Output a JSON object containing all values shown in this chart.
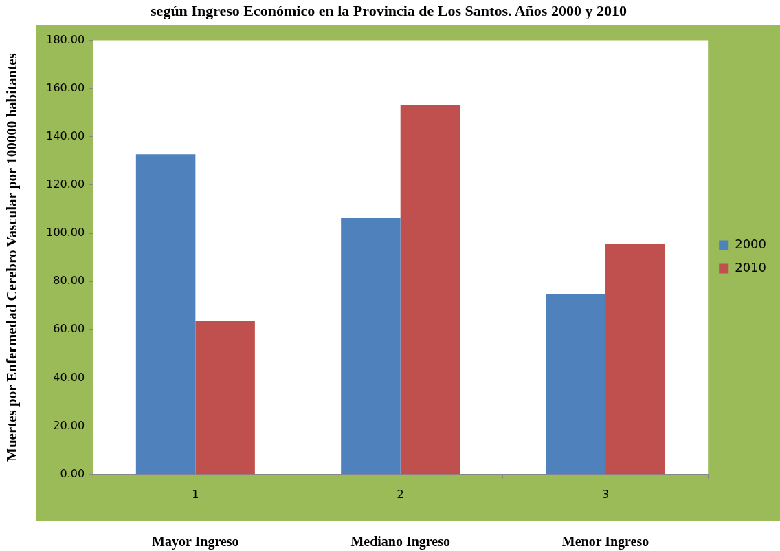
{
  "chart_data": {
    "type": "bar",
    "title": "según Ingreso Económico en la Provincia de Los Santos. Años 2000 y 2010",
    "ylabel": "Muertes por Enfermedad Cerebro Vascular por 100000 habitantes",
    "categories": [
      "1",
      "2",
      "3"
    ],
    "series": [
      {
        "name": "2000",
        "color": "#4f81bd",
        "values": [
          132.7,
          106.3,
          74.8
        ]
      },
      {
        "name": "2010",
        "color": "#c0504d",
        "values": [
          63.8,
          153.1,
          95.5
        ]
      }
    ],
    "ylim": [
      0,
      180
    ],
    "yticks": [
      {
        "value": 0,
        "label": "0.00"
      },
      {
        "value": 20,
        "label": "20.00"
      },
      {
        "value": 40,
        "label": "40.00"
      },
      {
        "value": 60,
        "label": "60.00"
      },
      {
        "value": 80,
        "label": "80.00"
      },
      {
        "value": 100,
        "label": "100.00"
      },
      {
        "value": 120,
        "label": "120.00"
      },
      {
        "value": 140,
        "label": "140.00"
      },
      {
        "value": 160,
        "label": "160.00"
      },
      {
        "value": 180,
        "label": "180.00"
      }
    ],
    "annotations": [
      "Mayor Ingreso",
      "Mediano Ingreso",
      "Menor Ingreso"
    ],
    "grid": false,
    "legend": "right"
  }
}
